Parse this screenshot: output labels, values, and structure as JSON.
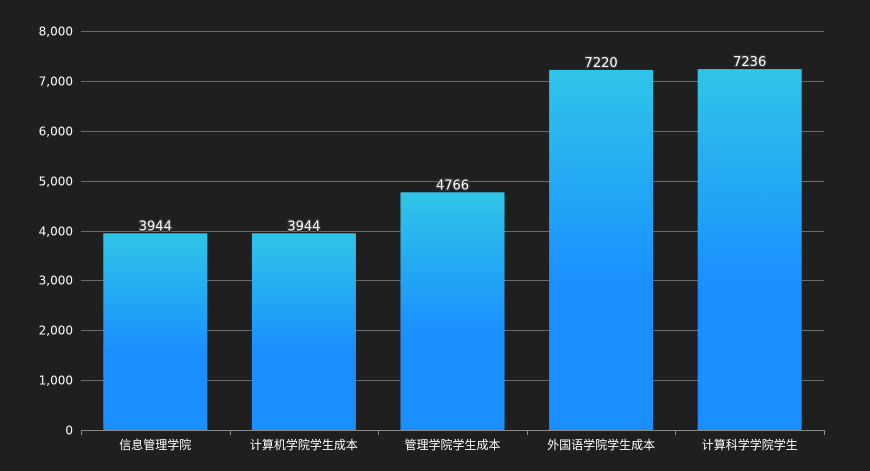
{
  "chart_data": {
    "type": "bar",
    "categories": [
      "信息管理学院",
      "计算机学院学生成本",
      "管理学院学生成本",
      "外国语学院学生成本",
      "计算科学学院学生"
    ],
    "series": [
      {
        "values": [
          3944,
          3944,
          4766,
          7220,
          7236
        ]
      }
    ],
    "data_labels": [
      "3944",
      "3944",
      "4766",
      "7220",
      "7236"
    ],
    "ylim": [
      0,
      8000
    ],
    "yticks": [
      0,
      1000,
      2000,
      3000,
      4000,
      5000,
      6000,
      7000,
      8000
    ],
    "ytick_labels": [
      "0",
      "1,000",
      "2,000",
      "3,000",
      "4,000",
      "5,000",
      "6,000",
      "7,000",
      "8,000"
    ],
    "title": "",
    "xlabel": "",
    "ylabel": "",
    "grid": true,
    "legend": "none",
    "colors": {
      "background": "#1f1f1f",
      "bar_top": "#30c5e8",
      "bar_bottom": "#1a8fff",
      "grid": "#6a6a6a",
      "text": "#ffffff"
    }
  }
}
